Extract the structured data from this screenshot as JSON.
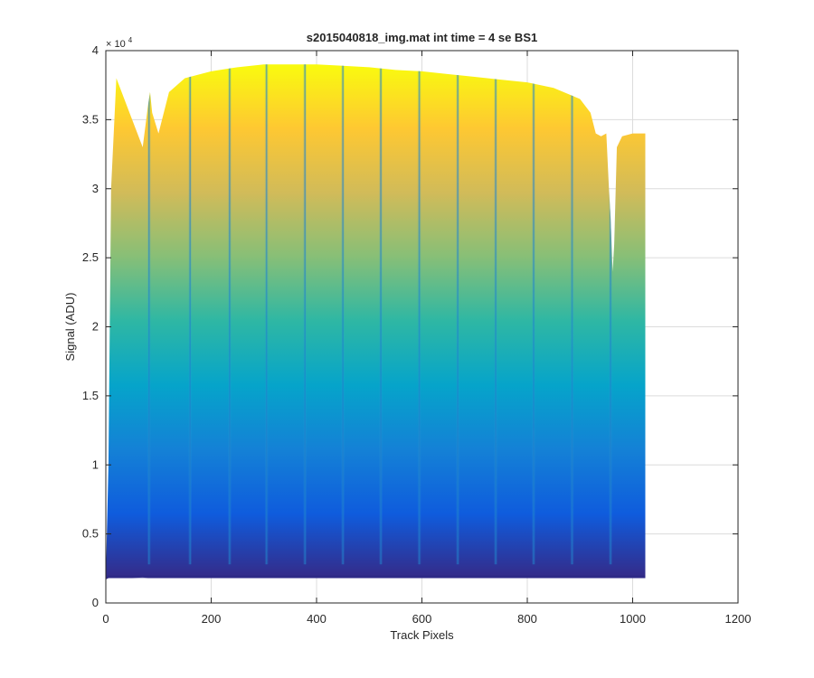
{
  "chart_data": {
    "type": "area",
    "title": "s2015040818_img.mat int time = 4 se   BS1",
    "xlabel": "Track Pixels",
    "ylabel": "Signal (ADU)",
    "y_exponent_label": "× 10",
    "y_exponent_power": "4",
    "xlim": [
      0,
      1200
    ],
    "ylim": [
      0,
      40000
    ],
    "xticks": [
      "0",
      "200",
      "400",
      "600",
      "800",
      "1000",
      "1200"
    ],
    "yticks": [
      "0",
      "0.5",
      "1",
      "1.5",
      "2",
      "2.5",
      "3",
      "3.5",
      "4"
    ],
    "grid": true,
    "colormap": "parula",
    "colormap_colors": [
      "#352a87",
      "#0f5cdd",
      "#1481d6",
      "#06a4ca",
      "#2eb7a4",
      "#87bf77",
      "#d1bb59",
      "#fec832",
      "#f9fb0e"
    ],
    "x": [
      0,
      5,
      10,
      20,
      50,
      70,
      80,
      84,
      88,
      100,
      120,
      150,
      200,
      250,
      300,
      350,
      400,
      450,
      500,
      550,
      600,
      650,
      700,
      750,
      800,
      850,
      900,
      920,
      930,
      940,
      950,
      955,
      958,
      962,
      965,
      970,
      980,
      1000,
      1024
    ],
    "upper": [
      1800,
      10000,
      30000,
      38000,
      35000,
      33000,
      36000,
      37000,
      35500,
      34000,
      37000,
      38000,
      38500,
      38800,
      39000,
      39000,
      39000,
      38900,
      38800,
      38600,
      38500,
      38300,
      38100,
      37900,
      37700,
      37300,
      36500,
      35500,
      34000,
      33800,
      34000,
      30000,
      28000,
      24000,
      26000,
      33000,
      33800,
      34000,
      34000
    ],
    "lower": [
      1700,
      1800,
      1800,
      1800,
      1800,
      1850,
      1800,
      1800,
      1800,
      1800,
      1800,
      1800,
      1800,
      1800,
      1800,
      1800,
      1800,
      1800,
      1800,
      1800,
      1800,
      1800,
      1800,
      1800,
      1800,
      1800,
      1800,
      1800,
      1800,
      1800,
      1800,
      1800,
      1800,
      1800,
      1800,
      1800,
      1800,
      1800,
      1800
    ],
    "dips_x": [
      82,
      160,
      235,
      305,
      378,
      450,
      522,
      595,
      668,
      740,
      812,
      885,
      958
    ],
    "dip_min_y": 2800
  }
}
